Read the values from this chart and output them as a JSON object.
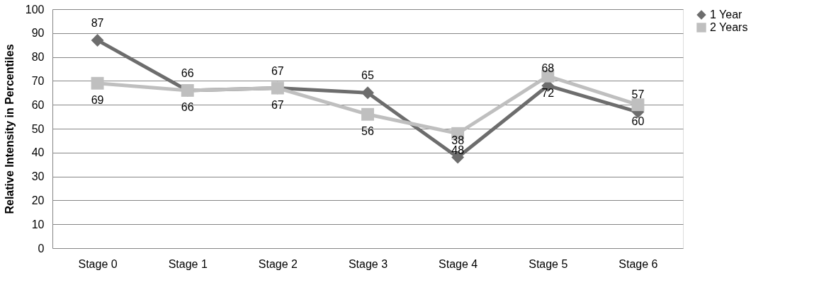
{
  "chart_data": {
    "type": "line",
    "ylabel": "Relative Intensity in Percentiles",
    "categories": [
      "Stage 0",
      "Stage 1",
      "Stage 2",
      "Stage 3",
      "Stage 4",
      "Stage 5",
      "Stage 6"
    ],
    "series": [
      {
        "name": "1 Year",
        "color": "#6d6d6d",
        "marker": "diamond",
        "values": [
          87,
          66,
          67,
          65,
          38,
          68,
          57
        ]
      },
      {
        "name": "2 Years",
        "color": "#bfbfbf",
        "marker": "square",
        "values": [
          69,
          66,
          67,
          56,
          48,
          72,
          60
        ]
      }
    ],
    "ylim": [
      0,
      100
    ],
    "yticks": [
      0,
      10,
      20,
      30,
      40,
      50,
      60,
      70,
      80,
      90,
      100
    ],
    "grid": "y",
    "legend": "right",
    "data_labels": true,
    "line_style": "solid"
  }
}
